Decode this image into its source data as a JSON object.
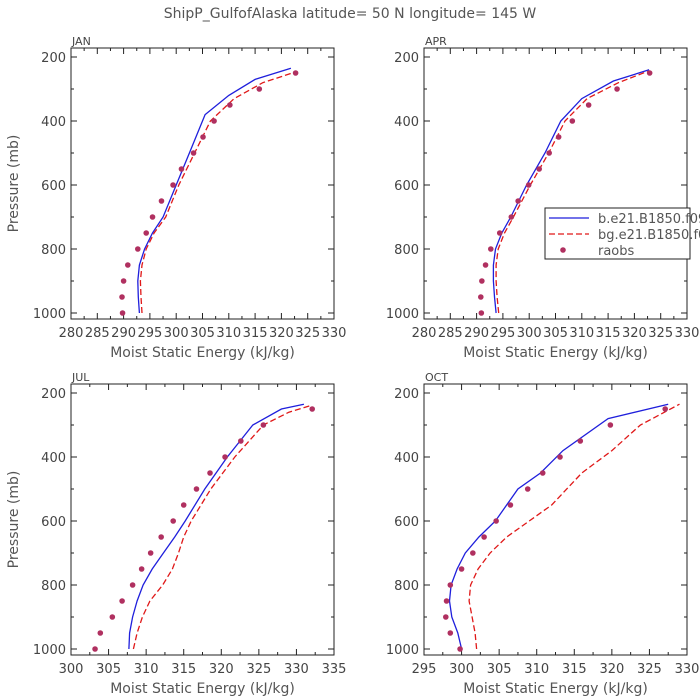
{
  "figure": {
    "title": "ShipP_GulfofAlaska   latitude= 50 N longitude= 145 W"
  },
  "legend": {
    "placement": "right",
    "entries": [
      {
        "label": "b.e21.B1850.f09",
        "color": "#1f1fdc",
        "style": "solid",
        "marker": "none"
      },
      {
        "label": "bg.e21.B1850.f0",
        "color": "#e01818",
        "style": "dashed",
        "marker": "none"
      },
      {
        "label": "raobs",
        "color": "#b03060",
        "style": "none",
        "marker": "dot"
      }
    ]
  },
  "chart_data": [
    {
      "type": "line",
      "title": "JAN",
      "xlabel": "Moist Static Energy (kJ/kg)",
      "ylabel": "Pressure (mb)",
      "xlim": [
        280,
        330
      ],
      "xticks": [
        "280",
        "285",
        "290",
        "295",
        "300",
        "305",
        "310",
        "315",
        "320",
        "325",
        "330"
      ],
      "ylim": [
        200,
        1000
      ],
      "yticks": [
        "200",
        "400",
        "600",
        "800",
        "1000"
      ],
      "y_inverted": true,
      "series": [
        {
          "name": "b.e21.B1850.f09",
          "x": [
            293.0,
            292.8,
            292.7,
            293.0,
            294.0,
            295.5,
            297.5,
            300.0,
            302.5,
            305.5,
            310.0,
            315.0,
            321.8
          ],
          "y": [
            1000,
            950,
            900,
            850,
            800,
            750,
            700,
            600,
            500,
            380,
            320,
            270,
            235
          ]
        },
        {
          "name": "bg.e21.B1850.f0",
          "x": [
            293.5,
            293.3,
            293.2,
            293.5,
            294.3,
            295.8,
            298.0,
            300.5,
            303.5,
            306.5,
            311.0,
            316.5,
            323.0
          ],
          "y": [
            1000,
            950,
            900,
            850,
            800,
            750,
            700,
            600,
            500,
            400,
            330,
            280,
            245
          ]
        },
        {
          "name": "raobs",
          "x": [
            289.8,
            289.7,
            290.0,
            290.8,
            292.7,
            294.3,
            295.5,
            297.2,
            299.4,
            301.0,
            303.3,
            305.1,
            307.2,
            310.2,
            315.8,
            322.7
          ],
          "y": [
            1000,
            950,
            900,
            850,
            800,
            750,
            700,
            650,
            600,
            550,
            500,
            450,
            400,
            350,
            300,
            250
          ]
        }
      ]
    },
    {
      "type": "line",
      "title": "APR",
      "xlabel": "Moist Static Energy (kJ/kg)",
      "ylabel": "",
      "xlim": [
        280,
        330
      ],
      "xticks": [
        "280",
        "285",
        "290",
        "295",
        "300",
        "305",
        "310",
        "315",
        "320",
        "325",
        "330"
      ],
      "ylim": [
        200,
        1000
      ],
      "yticks": [
        "200",
        "400",
        "600",
        "800",
        "1000"
      ],
      "y_inverted": true,
      "series": [
        {
          "name": "b.e21.B1850.f09",
          "x": [
            293.7,
            293.4,
            293.2,
            293.2,
            293.6,
            294.8,
            296.5,
            299.5,
            303.0,
            306.0,
            310.0,
            316.0,
            322.8
          ],
          "y": [
            1000,
            950,
            900,
            850,
            800,
            750,
            700,
            600,
            500,
            400,
            330,
            275,
            240
          ]
        },
        {
          "name": "bg.e21.B1850.f0",
          "x": [
            294.2,
            293.9,
            293.7,
            293.7,
            294.1,
            295.3,
            297.0,
            300.2,
            303.7,
            306.8,
            311.0,
            317.0,
            322.5
          ],
          "y": [
            1000,
            950,
            900,
            850,
            800,
            750,
            700,
            600,
            500,
            400,
            330,
            280,
            245
          ]
        },
        {
          "name": "raobs",
          "x": [
            290.9,
            290.8,
            291.0,
            291.7,
            292.7,
            294.4,
            296.6,
            297.9,
            299.9,
            301.9,
            303.8,
            305.6,
            308.2,
            311.3,
            316.7,
            322.9
          ],
          "y": [
            1000,
            950,
            900,
            850,
            800,
            750,
            700,
            650,
            600,
            550,
            500,
            450,
            400,
            350,
            300,
            250
          ]
        }
      ]
    },
    {
      "type": "line",
      "title": "JUL",
      "xlabel": "Moist Static Energy (kJ/kg)",
      "ylabel": "Pressure (mb)",
      "xlim": [
        300,
        335
      ],
      "xticks": [
        "300",
        "305",
        "310",
        "315",
        "320",
        "325",
        "330",
        "335"
      ],
      "ylim": [
        200,
        1000
      ],
      "yticks": [
        "200",
        "400",
        "600",
        "800",
        "1000"
      ],
      "y_inverted": true,
      "series": [
        {
          "name": "b.e21.B1850.f09",
          "x": [
            307.7,
            307.8,
            308.2,
            308.8,
            309.6,
            310.8,
            312.3,
            313.8,
            315.2,
            317.8,
            320.8,
            324.2,
            328.0,
            331.0
          ],
          "y": [
            1000,
            950,
            900,
            850,
            800,
            750,
            700,
            650,
            600,
            500,
            400,
            300,
            250,
            235
          ]
        },
        {
          "name": "bg.e21.B1850.f0",
          "x": [
            308.3,
            308.8,
            309.5,
            310.5,
            312.2,
            313.5,
            314.3,
            315.0,
            316.0,
            318.6,
            321.8,
            325.6,
            329.0,
            331.8
          ],
          "y": [
            1000,
            950,
            900,
            850,
            800,
            750,
            700,
            650,
            600,
            500,
            400,
            300,
            260,
            240
          ]
        },
        {
          "name": "raobs",
          "x": [
            303.2,
            303.9,
            305.5,
            306.8,
            308.2,
            309.4,
            310.6,
            312.0,
            313.6,
            315.0,
            316.7,
            318.5,
            320.5,
            322.6,
            325.6,
            332.1
          ],
          "y": [
            1000,
            950,
            900,
            850,
            800,
            750,
            700,
            650,
            600,
            550,
            500,
            450,
            400,
            350,
            300,
            250
          ]
        }
      ]
    },
    {
      "type": "line",
      "title": "OCT",
      "xlabel": "Moist Static Energy (kJ/kg)",
      "ylabel": "",
      "xlim": [
        295,
        330
      ],
      "xticks": [
        "295",
        "300",
        "305",
        "310",
        "315",
        "320",
        "325",
        "330"
      ],
      "ylim": [
        200,
        1000
      ],
      "yticks": [
        "200",
        "400",
        "600",
        "800",
        "1000"
      ],
      "y_inverted": true,
      "series": [
        {
          "name": "b.e21.B1850.f09",
          "x": [
            300.0,
            299.5,
            298.7,
            298.4,
            298.6,
            299.4,
            300.5,
            302.3,
            304.5,
            307.5,
            310.5,
            313.5,
            319.5,
            327.5
          ],
          "y": [
            1000,
            950,
            900,
            850,
            800,
            750,
            700,
            650,
            600,
            500,
            450,
            380,
            280,
            235
          ]
        },
        {
          "name": "bg.e21.B1850.f0",
          "x": [
            302.0,
            301.8,
            301.4,
            301.0,
            301.2,
            302.2,
            303.8,
            306.0,
            309.0,
            312.0,
            316.0,
            320.0,
            323.8,
            329.0
          ],
          "y": [
            1000,
            950,
            900,
            850,
            800,
            750,
            700,
            650,
            600,
            550,
            450,
            380,
            300,
            235
          ]
        },
        {
          "name": "raobs",
          "x": [
            299.8,
            298.5,
            297.9,
            298.0,
            298.5,
            300.0,
            301.5,
            303.0,
            304.6,
            306.5,
            308.8,
            310.8,
            313.1,
            315.8,
            319.8,
            327.1
          ],
          "y": [
            1000,
            950,
            900,
            850,
            800,
            750,
            700,
            650,
            600,
            550,
            500,
            450,
            400,
            350,
            300,
            250
          ]
        }
      ]
    }
  ]
}
